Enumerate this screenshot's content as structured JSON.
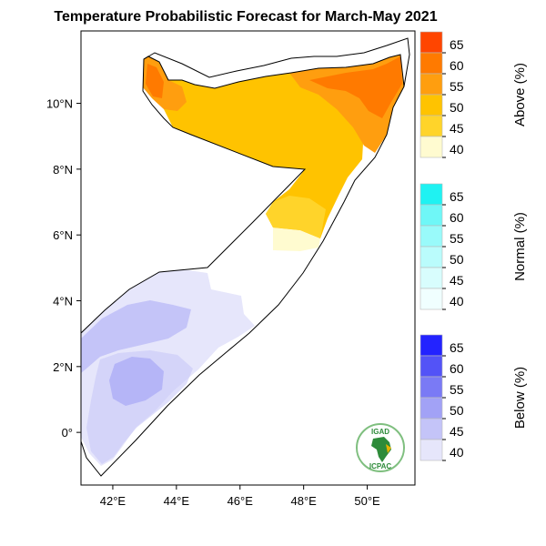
{
  "title": "Temperature Probabilistic Forecast for March-May 2021",
  "map": {
    "lon_ticks": [
      "42°E",
      "44°E",
      "46°E",
      "48°E",
      "50°E"
    ],
    "lat_ticks": [
      "10°N",
      "8°N",
      "6°N",
      "4°N",
      "2°N",
      "0°"
    ],
    "lon_values": [
      42,
      44,
      46,
      48,
      50
    ],
    "lat_values": [
      10,
      8,
      6,
      4,
      2,
      0
    ],
    "lon_range": [
      41,
      51.5
    ],
    "lat_range": [
      -1.6,
      12.2
    ]
  },
  "legends": [
    {
      "title": "Above (%)",
      "labels": [
        "65",
        "60",
        "55",
        "50",
        "45",
        "40"
      ],
      "colors": [
        "#ff4500",
        "#ff7a00",
        "#ff9e0f",
        "#ffc300",
        "#ffd42a",
        "#fffbd0"
      ]
    },
    {
      "title": "Normal (%)",
      "labels": [
        "65",
        "60",
        "55",
        "50",
        "45",
        "40"
      ],
      "colors": [
        "#1ff2f2",
        "#6ff7f7",
        "#99fafa",
        "#bafcfc",
        "#d8fdfd",
        "#f0ffff"
      ]
    },
    {
      "title": "Below (%)",
      "labels": [
        "65",
        "60",
        "55",
        "50",
        "45",
        "40"
      ],
      "colors": [
        "#2323ff",
        "#5353f7",
        "#7a7af5",
        "#a2a2f6",
        "#c4c4f8",
        "#e6e6fb"
      ]
    }
  ],
  "logo": {
    "top_text": "IGAD",
    "bottom_text": "ICPAC",
    "color": "#2e8b3a"
  }
}
